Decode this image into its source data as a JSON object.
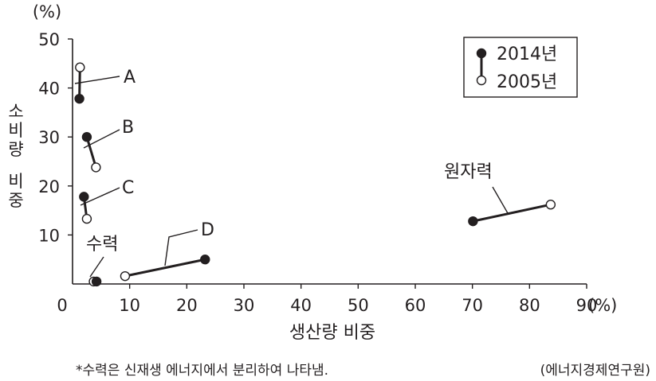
{
  "chart_data": {
    "type": "scatter",
    "xlabel": "생산량 비중",
    "ylabel": "소비량 비중",
    "x_unit": "(%)",
    "y_unit": "(%)",
    "xlim": [
      0,
      90
    ],
    "ylim": [
      0,
      50
    ],
    "x_ticks": [
      0,
      10,
      20,
      30,
      40,
      50,
      60,
      70,
      80,
      90
    ],
    "y_ticks": [
      10,
      20,
      30,
      40,
      50
    ],
    "legend": {
      "position": "top-right",
      "entries": [
        {
          "label": "2014년",
          "marker": "filled-circle"
        },
        {
          "label": "2005년",
          "marker": "open-circle"
        }
      ]
    },
    "series": [
      {
        "name": "2014년",
        "marker": "filled"
      },
      {
        "name": "2005년",
        "marker": "open"
      }
    ],
    "items": [
      {
        "label": "A",
        "y2014": [
          1.2,
          37.8
        ],
        "y2005": [
          1.3,
          44.2
        ]
      },
      {
        "label": "B",
        "y2014": [
          2.5,
          30.0
        ],
        "y2005": [
          4.1,
          23.8
        ]
      },
      {
        "label": "C",
        "y2014": [
          2.0,
          17.8
        ],
        "y2005": [
          2.5,
          13.3
        ]
      },
      {
        "label": "D",
        "y2014": [
          23.2,
          5.0
        ],
        "y2005": [
          9.2,
          1.6
        ]
      },
      {
        "label": "수력",
        "y2014": [
          4.2,
          0.5
        ],
        "y2005": [
          3.7,
          0.5
        ]
      },
      {
        "label": "원자력",
        "y2014": [
          70.1,
          12.8
        ],
        "y2005": [
          83.7,
          16.2
        ]
      }
    ],
    "footnote": "*수력은 신재생 에너지에서 분리하여 나타냄.",
    "source": "(에너지경제연구원)",
    "colors": {
      "ink": "#231f20",
      "open_fill": "#ffffff"
    }
  }
}
